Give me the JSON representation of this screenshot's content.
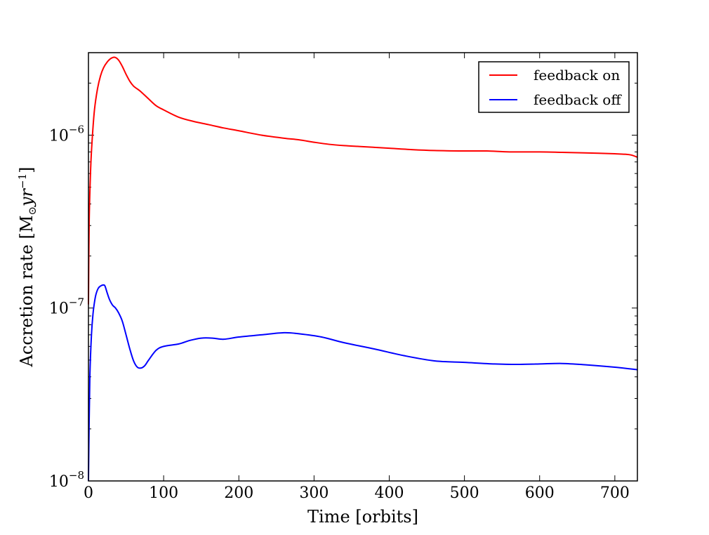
{
  "chart_data": {
    "type": "line",
    "title": "",
    "xlabel": "Time [orbits]",
    "ylabel": "Accretion rate [M",
    "ylabel_sub": "⊙",
    "ylabel_unit": "yr",
    "ylabel_exp": "−1",
    "ylabel_close": "]",
    "xlim": [
      0,
      730
    ],
    "ylim": [
      1e-08,
      3e-06
    ],
    "yscale": "log",
    "grid": false,
    "legend_position": "top-right",
    "x_ticks": [
      {
        "value": 0,
        "label": "0"
      },
      {
        "value": 100,
        "label": "100"
      },
      {
        "value": 200,
        "label": "200"
      },
      {
        "value": 300,
        "label": "300"
      },
      {
        "value": 400,
        "label": "400"
      },
      {
        "value": 500,
        "label": "500"
      },
      {
        "value": 600,
        "label": "600"
      },
      {
        "value": 700,
        "label": "700"
      }
    ],
    "y_ticks": [
      {
        "value": 1e-08,
        "base": "10",
        "exp": "−8"
      },
      {
        "value": 1e-07,
        "base": "10",
        "exp": "−7"
      },
      {
        "value": 1e-06,
        "base": "10",
        "exp": "−6"
      }
    ],
    "series": [
      {
        "name": "feedback on",
        "color": "#ff0000",
        "x": [
          0,
          1,
          3,
          5,
          8,
          12,
          16,
          20,
          25,
          30,
          35,
          40,
          45,
          50,
          55,
          60,
          65,
          70,
          80,
          90,
          100,
          120,
          140,
          160,
          180,
          200,
          230,
          260,
          280,
          300,
          320,
          340,
          360,
          380,
          400,
          430,
          460,
          500,
          530,
          560,
          600,
          630,
          660,
          700,
          720,
          730
        ],
        "y": [
          1.05e-07,
          3.2e-07,
          6.5e-07,
          9.5e-07,
          1.4e-06,
          1.85e-06,
          2.2e-06,
          2.45e-06,
          2.65e-06,
          2.78e-06,
          2.82e-06,
          2.72e-06,
          2.5e-06,
          2.25e-06,
          2.05e-06,
          1.92e-06,
          1.85e-06,
          1.78e-06,
          1.62e-06,
          1.48e-06,
          1.4e-06,
          1.27e-06,
          1.2e-06,
          1.15e-06,
          1.1e-06,
          1.06e-06,
          1e-06,
          9.6e-07,
          9.4e-07,
          9.1e-07,
          8.85e-07,
          8.7e-07,
          8.6e-07,
          8.5e-07,
          8.4e-07,
          8.25e-07,
          8.15e-07,
          8.1e-07,
          8.1e-07,
          8e-07,
          8e-07,
          7.95e-07,
          7.9e-07,
          7.8e-07,
          7.7e-07,
          7.45e-07
        ]
      },
      {
        "name": "feedback off",
        "color": "#0000ff",
        "x": [
          0,
          1,
          2,
          4,
          6,
          8,
          10,
          13,
          16,
          20,
          22,
          25,
          28,
          32,
          36,
          40,
          45,
          50,
          55,
          60,
          65,
          70,
          75,
          80,
          90,
          100,
          120,
          135,
          150,
          165,
          180,
          200,
          230,
          260,
          280,
          310,
          340,
          380,
          420,
          460,
          500,
          540,
          570,
          600,
          630,
          660,
          700,
          730
        ],
        "y": [
          1e-08,
          2.3e-08,
          4.2e-08,
          7e-08,
          9.2e-08,
          1.08e-07,
          1.2e-07,
          1.3e-07,
          1.34e-07,
          1.36e-07,
          1.34e-07,
          1.22e-07,
          1.12e-07,
          1.04e-07,
          1e-07,
          9.4e-08,
          8.4e-08,
          7e-08,
          5.8e-08,
          4.95e-08,
          4.55e-08,
          4.5e-08,
          4.65e-08,
          5e-08,
          5.7e-08,
          6e-08,
          6.2e-08,
          6.5e-08,
          6.7e-08,
          6.7e-08,
          6.6e-08,
          6.8e-08,
          7e-08,
          7.2e-08,
          7.1e-08,
          6.8e-08,
          6.3e-08,
          5.8e-08,
          5.3e-08,
          4.95e-08,
          4.85e-08,
          4.75e-08,
          4.72e-08,
          4.75e-08,
          4.78e-08,
          4.7e-08,
          4.55e-08,
          4.4e-08
        ]
      }
    ]
  }
}
